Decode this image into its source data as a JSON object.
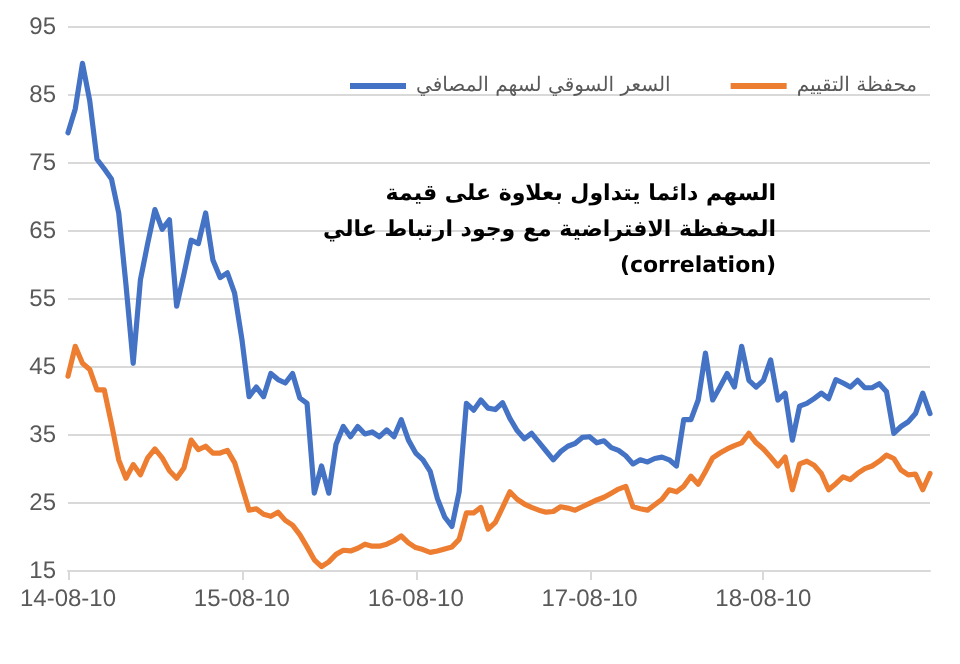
{
  "chart_data": {
    "type": "line",
    "annotations": [
      "السهم دائما يتداول بعلاوة على قيمة المحفظة الافتراضية مع وجود ارتباط عالي (correlation)"
    ],
    "categories": [
      "14-08-10",
      null,
      null,
      null,
      null,
      null,
      null,
      null,
      null,
      null,
      null,
      null,
      null,
      null,
      null,
      null,
      null,
      null,
      null,
      null,
      null,
      null,
      null,
      null,
      "15-08-10",
      null,
      null,
      null,
      null,
      null,
      null,
      null,
      null,
      null,
      null,
      null,
      null,
      null,
      null,
      null,
      null,
      null,
      null,
      null,
      null,
      null,
      null,
      null,
      "16-08-10",
      null,
      null,
      null,
      null,
      null,
      null,
      null,
      null,
      null,
      null,
      null,
      null,
      null,
      null,
      null,
      null,
      null,
      null,
      null,
      null,
      null,
      null,
      null,
      "17-08-10",
      null,
      null,
      null,
      null,
      null,
      null,
      null,
      null,
      null,
      null,
      null,
      null,
      null,
      null,
      null,
      null,
      null,
      null,
      null,
      null,
      null,
      null,
      null,
      "18-08-10",
      null,
      null,
      null,
      null,
      null,
      null,
      null,
      null,
      null,
      null,
      null,
      null,
      null,
      null,
      null,
      null,
      null,
      null,
      null,
      null,
      null,
      null,
      null
    ],
    "ylim": [
      15,
      95
    ],
    "yticks": [
      15,
      25,
      35,
      45,
      55,
      65,
      75,
      85,
      95
    ],
    "grid": "y",
    "legend": "top",
    "marker": "none",
    "line_style": "solid",
    "series": [
      {
        "name": "السعر السوقي لسهم المصافي",
        "color": "#4472c4",
        "values": [
          79.3,
          82.8,
          89.5,
          84.0,
          75.4,
          74.0,
          72.5,
          67.5,
          57.0,
          45.4,
          57.7,
          63.0,
          68.0,
          65.1,
          66.5,
          53.8,
          58.5,
          63.5,
          63.0,
          67.5,
          60.6,
          58.0,
          58.7,
          55.7,
          49.0,
          40.5,
          41.9,
          40.5,
          43.9,
          43.0,
          42.5,
          43.9,
          40.3,
          39.5,
          26.3,
          30.3,
          26.3,
          33.5,
          36.1,
          34.6,
          36.1,
          35.0,
          35.3,
          34.6,
          35.6,
          34.6,
          37.1,
          34.1,
          32.2,
          31.2,
          29.5,
          25.5,
          22.8,
          21.4,
          26.5,
          39.5,
          38.5,
          40.0,
          38.8,
          38.6,
          39.6,
          37.3,
          35.5,
          34.3,
          35.1,
          33.8,
          32.5,
          31.2,
          32.4,
          33.2,
          33.6,
          34.5,
          34.6,
          33.7,
          34.0,
          33.0,
          32.6,
          31.8,
          30.6,
          31.2,
          30.9,
          31.4,
          31.6,
          31.2,
          30.3,
          37.1,
          37.1,
          40.0,
          46.9,
          40.0,
          41.9,
          43.9,
          41.9,
          47.9,
          42.9,
          41.9,
          42.9,
          45.9,
          40.0,
          41.0,
          34.1,
          39.1,
          39.5,
          40.2,
          41.0,
          40.2,
          43.0,
          42.5,
          41.9,
          42.9,
          41.8,
          41.8,
          42.4,
          41.2,
          35.1,
          36.1,
          36.8,
          38.0,
          41.0,
          38.0
        ]
      },
      {
        "name": "محفظة التقييم",
        "color": "#ed7d31",
        "values": [
          43.5,
          47.9,
          45.4,
          44.5,
          41.5,
          41.5,
          36.5,
          31.2,
          28.5,
          30.5,
          29.0,
          31.5,
          32.8,
          31.5,
          29.6,
          28.5,
          30.0,
          34.1,
          32.7,
          33.2,
          32.2,
          32.2,
          32.6,
          30.8,
          27.3,
          23.8,
          24.0,
          23.2,
          22.9,
          23.5,
          22.3,
          21.6,
          20.2,
          18.4,
          16.5,
          15.5,
          16.2,
          17.3,
          17.9,
          17.8,
          18.2,
          18.8,
          18.5,
          18.5,
          18.8,
          19.3,
          20.0,
          19.0,
          18.3,
          18.0,
          17.6,
          17.8,
          18.1,
          18.4,
          19.5,
          23.4,
          23.4,
          24.2,
          21.0,
          22.0,
          24.2,
          26.5,
          25.4,
          24.7,
          24.2,
          23.8,
          23.5,
          23.6,
          24.3,
          24.1,
          23.8,
          24.3,
          24.8,
          25.3,
          25.7,
          26.3,
          26.9,
          27.3,
          24.3,
          24.0,
          23.8,
          24.6,
          25.4,
          26.8,
          26.5,
          27.3,
          28.8,
          27.6,
          29.5,
          31.5,
          32.2,
          32.8,
          33.3,
          33.7,
          35.1,
          33.7,
          32.8,
          31.6,
          30.3,
          31.6,
          26.8,
          30.6,
          31.0,
          30.4,
          29.2,
          26.8,
          27.7,
          28.7,
          28.3,
          29.2,
          29.9,
          30.3,
          31.0,
          31.9,
          31.4,
          29.7,
          29.0,
          29.1,
          26.8,
          29.2
        ]
      }
    ]
  }
}
